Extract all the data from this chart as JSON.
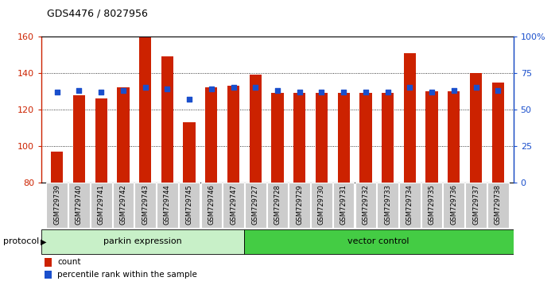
{
  "title": "GDS4476 / 8027956",
  "samples": [
    "GSM729739",
    "GSM729740",
    "GSM729741",
    "GSM729742",
    "GSM729743",
    "GSM729744",
    "GSM729745",
    "GSM729746",
    "GSM729747",
    "GSM729727",
    "GSM729728",
    "GSM729729",
    "GSM729730",
    "GSM729731",
    "GSM729732",
    "GSM729733",
    "GSM729734",
    "GSM729735",
    "GSM729736",
    "GSM729737",
    "GSM729738"
  ],
  "red_values": [
    97,
    128,
    126,
    132,
    160,
    149,
    113,
    132,
    133,
    139,
    129,
    129,
    129,
    129,
    129,
    129,
    151,
    130,
    130,
    140,
    135
  ],
  "blue_pct": [
    62,
    63,
    62,
    63,
    65,
    64,
    57,
    64,
    65,
    65,
    63,
    62,
    62,
    62,
    62,
    62,
    65,
    62,
    63,
    65,
    63
  ],
  "parkin_count": 9,
  "vector_count": 12,
  "group1_label": "parkin expression",
  "group2_label": "vector control",
  "protocol_label": "protocol",
  "legend_count": "count",
  "legend_pct": "percentile rank within the sample",
  "ylim_left": [
    80,
    160
  ],
  "ylim_right": [
    0,
    100
  ],
  "yticks_left": [
    80,
    100,
    120,
    140,
    160
  ],
  "yticks_right": [
    0,
    25,
    50,
    75,
    100
  ],
  "bar_color": "#cc2200",
  "dot_color": "#1a4fcc",
  "group1_color": "#c8f0c8",
  "group2_color": "#44cc44",
  "bar_width": 0.55
}
